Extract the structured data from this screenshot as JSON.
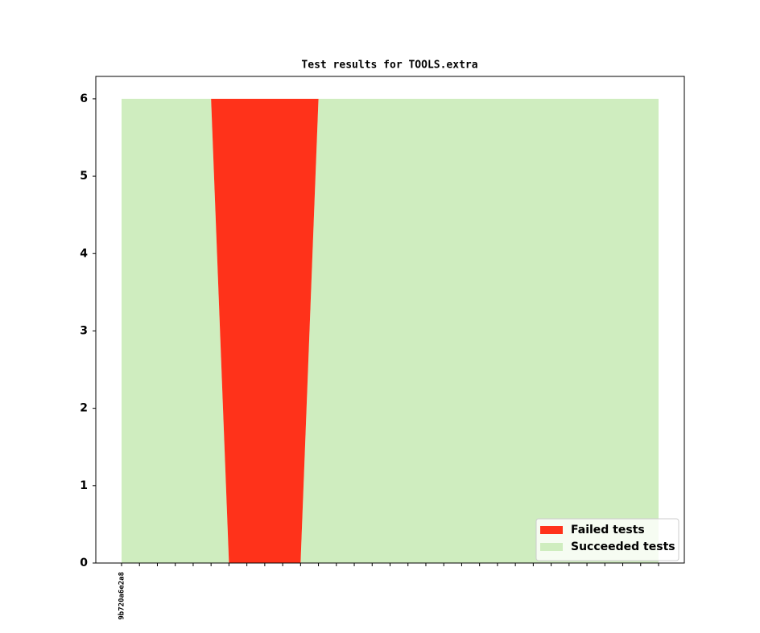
{
  "chart_data": {
    "type": "stacked-area",
    "title": "Test results for TOOLS.extra",
    "categories": [
      "9b720a6e2a8",
      null,
      null,
      null,
      null,
      null,
      null,
      null,
      null,
      null,
      null,
      null,
      null,
      null,
      null,
      null,
      null,
      null,
      null,
      null,
      null,
      null,
      null,
      null,
      null,
      null,
      null,
      null,
      null,
      null,
      null
    ],
    "series": [
      {
        "name": "Succeeded tests",
        "color": "#cfedbf",
        "values": [
          6,
          6,
          6,
          6,
          6,
          6,
          0,
          0,
          0,
          0,
          0,
          6,
          6,
          6,
          6,
          6,
          6,
          6,
          6,
          6,
          6,
          6,
          6,
          6,
          6,
          6,
          6,
          6,
          6,
          6,
          6
        ]
      },
      {
        "name": "Failed tests",
        "color": "#ff321a",
        "values": [
          0,
          0,
          0,
          0,
          0,
          0,
          6,
          6,
          6,
          6,
          6,
          0,
          0,
          0,
          0,
          0,
          0,
          0,
          0,
          0,
          0,
          0,
          0,
          0,
          0,
          0,
          0,
          0,
          0,
          0,
          0
        ]
      }
    ],
    "legend_order": [
      1,
      0
    ],
    "ylim": [
      0,
      6.29
    ],
    "yticks": [
      0,
      1,
      2,
      3,
      4,
      5,
      6
    ],
    "legend": "lower right"
  }
}
